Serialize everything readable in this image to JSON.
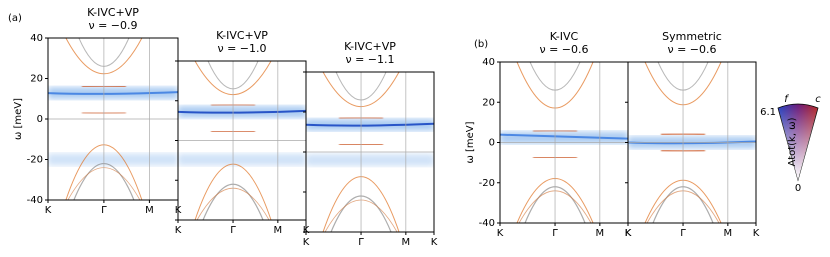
{
  "panel_labels": [
    "(a)",
    "(b)"
  ],
  "chart_data": [
    {
      "type": "spectral",
      "title": "K-IVC+VP",
      "subtitle": "ν = −0.9",
      "ylabel": "ω [meV]",
      "categories": [
        "K",
        "Γ",
        "M",
        "K"
      ],
      "ylim": [
        -40,
        40
      ],
      "yticks": [
        -40,
        -20,
        0,
        20,
        40
      ],
      "tick_labels": true
    },
    {
      "type": "spectral",
      "title": "K-IVC+VP",
      "subtitle": "ν = −1.0",
      "categories": [
        "K",
        "Γ",
        "M",
        "K"
      ],
      "ylim": [
        -40,
        40
      ],
      "yticks": [
        -40,
        -20,
        0,
        20,
        40
      ],
      "tick_labels": false
    },
    {
      "type": "spectral",
      "title": "K-IVC+VP",
      "subtitle": "ν = −1.1",
      "categories": [
        "K",
        "Γ",
        "M",
        "K"
      ],
      "ylim": [
        -40,
        40
      ],
      "yticks": [
        -40,
        -20,
        0,
        20,
        40
      ],
      "tick_labels": false
    },
    {
      "type": "spectral",
      "title": "K-IVC",
      "subtitle": "ν = −0.6",
      "ylabel": "ω [meV]",
      "categories": [
        "K",
        "Γ",
        "M",
        "K"
      ],
      "ylim": [
        -40,
        40
      ],
      "yticks": [
        -40,
        -20,
        0,
        20,
        40
      ],
      "tick_labels": true
    },
    {
      "type": "spectral",
      "title": "Symmetric",
      "subtitle": "ν = −0.6",
      "categories": [
        "K",
        "Γ",
        "M",
        "K"
      ],
      "ylim": [
        -40,
        40
      ],
      "yticks": [
        -40,
        -20,
        0,
        20,
        40
      ],
      "tick_labels": false
    }
  ],
  "colorbar": {
    "label": "Atot(k, ω)",
    "ticks": [
      0,
      6.1
    ],
    "corner_labels": [
      "f",
      "c"
    ]
  }
}
